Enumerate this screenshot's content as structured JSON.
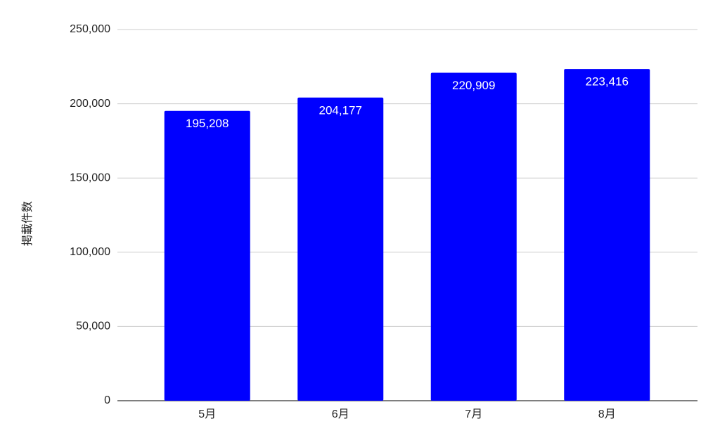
{
  "chart_data": {
    "type": "bar",
    "y_label": "掲載件数",
    "categories": [
      "5月",
      "6月",
      "7月",
      "8月"
    ],
    "values": [
      195208,
      204177,
      220909,
      223416
    ],
    "value_labels": [
      "195,208",
      "204,177",
      "220,909",
      "223,416"
    ],
    "color": "#0000ff",
    "ylim": [
      0,
      250000
    ],
    "yticks": [
      0,
      {
        "value": 50000,
        "label": "50,000"
      },
      {
        "value": 100000,
        "label": "100,000"
      },
      {
        "value": 150000,
        "label": "150,000"
      },
      {
        "value": 200000,
        "label": "200,000"
      },
      {
        "value": 250000,
        "label": "250,000"
      }
    ],
    "grid": true
  }
}
